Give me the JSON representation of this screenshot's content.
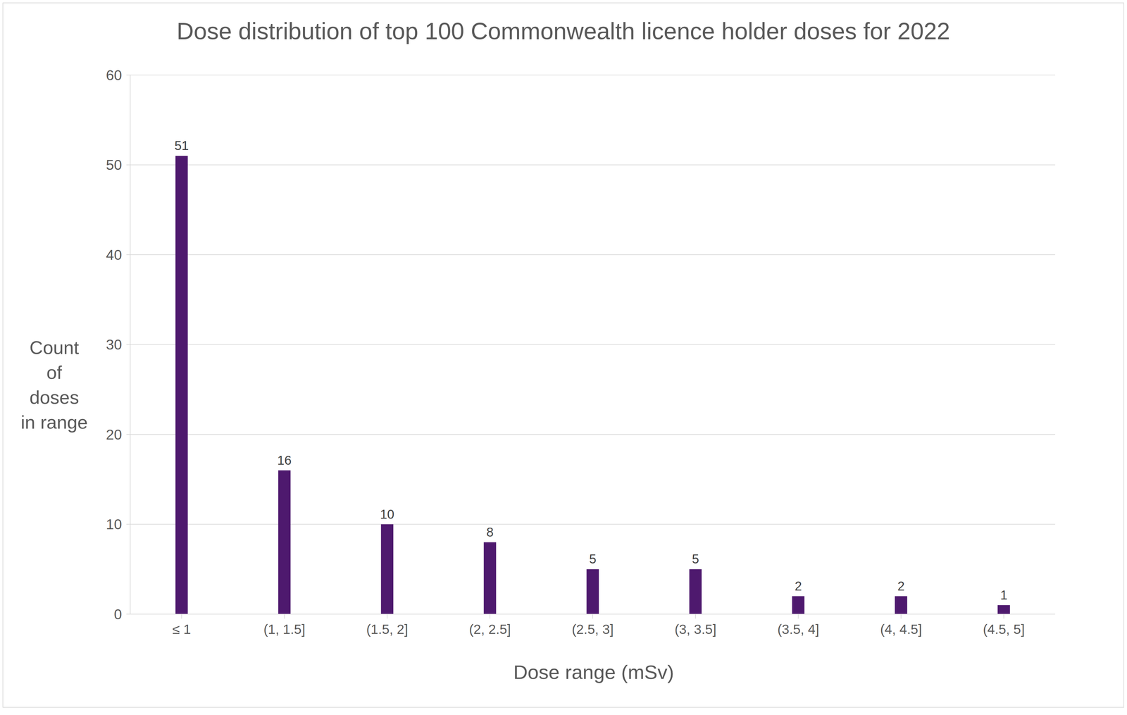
{
  "chart_data": {
    "type": "bar",
    "title": "Dose distribution of top 100 Commonwealth licence holder doses for 2022",
    "x_label": "Dose range (mSv)",
    "y_label": "Count\nof\ndoses\nin range",
    "categories": [
      "≤ 1",
      "(1, 1.5]",
      "(1.5, 2]",
      "(2, 2.5]",
      "(2.5, 3]",
      "(3, 3.5]",
      "(3.5, 4]",
      "(4, 4.5]",
      "(4.5, 5]"
    ],
    "values": [
      51,
      16,
      10,
      8,
      5,
      5,
      2,
      2,
      1
    ],
    "color": "#4e196e",
    "ylim": [
      0,
      60
    ],
    "yticks": [
      0,
      10,
      20,
      30,
      40,
      50,
      60
    ],
    "grid": true,
    "data_labels": true
  }
}
